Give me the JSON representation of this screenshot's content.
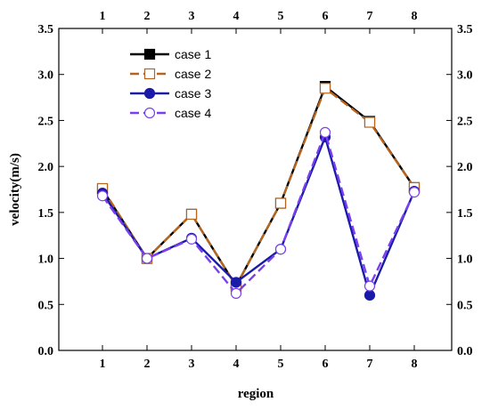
{
  "chart_data": {
    "type": "line",
    "title": "",
    "xlabel": "region",
    "ylabel": "velocity(m/s)",
    "categories": [
      "1",
      "2",
      "3",
      "4",
      "5",
      "6",
      "7",
      "8"
    ],
    "ylim": [
      0,
      3.5
    ],
    "yticks": [
      "0.0",
      "0.5",
      "1.0",
      "1.5",
      "2.0",
      "2.5",
      "3.0",
      "3.5"
    ],
    "grid": false,
    "legend_position": "top-left",
    "series": [
      {
        "name": "case 1",
        "color": "#000000",
        "marker": "filled-square",
        "line": "solid",
        "values": [
          1.75,
          1.0,
          1.48,
          0.7,
          1.6,
          2.87,
          2.49,
          1.77
        ]
      },
      {
        "name": "case 2",
        "color": "#b5651d",
        "marker": "open-square",
        "line": "dashed",
        "values": [
          1.76,
          1.0,
          1.48,
          0.7,
          1.6,
          2.85,
          2.48,
          1.77
        ]
      },
      {
        "name": "case 3",
        "color": "#1a1aa8",
        "marker": "filled-circle",
        "line": "solid",
        "values": [
          1.71,
          1.0,
          1.22,
          0.74,
          1.1,
          2.32,
          0.6,
          1.73
        ]
      },
      {
        "name": "case 4",
        "color": "#7a3ff2",
        "marker": "open-circle",
        "line": "dashed",
        "values": [
          1.68,
          1.0,
          1.21,
          0.62,
          1.1,
          2.37,
          0.7,
          1.72
        ]
      }
    ]
  }
}
